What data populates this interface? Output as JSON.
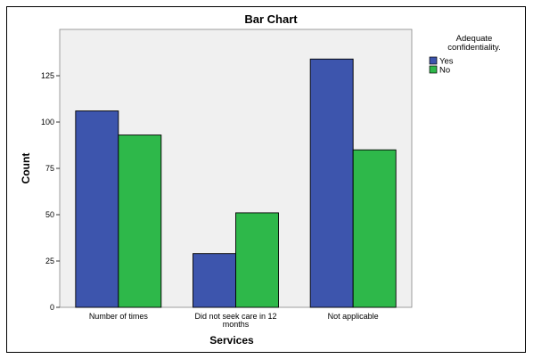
{
  "chart_data": {
    "type": "bar",
    "title": "Bar Chart",
    "xlabel": "Services",
    "ylabel": "Count",
    "categories": [
      "Number of times",
      "Did not seek care in 12 months",
      "Not applicable"
    ],
    "category_lines": [
      [
        "Number of times"
      ],
      [
        "Did not seek care in 12",
        "months"
      ],
      [
        "Not applicable"
      ]
    ],
    "series": [
      {
        "name": "Yes",
        "values": [
          106,
          29,
          134
        ],
        "color": "#3d55ad"
      },
      {
        "name": "No",
        "values": [
          93,
          51,
          85
        ],
        "color": "#2eb84a"
      }
    ],
    "ylim": [
      0,
      150
    ],
    "yticks": [
      0,
      25,
      50,
      75,
      100,
      125
    ],
    "legend": {
      "title_lines": [
        "Adequate",
        "confidentiality."
      ],
      "position": "top-right"
    },
    "grid": false,
    "plot_background": "#f0f0f0"
  }
}
